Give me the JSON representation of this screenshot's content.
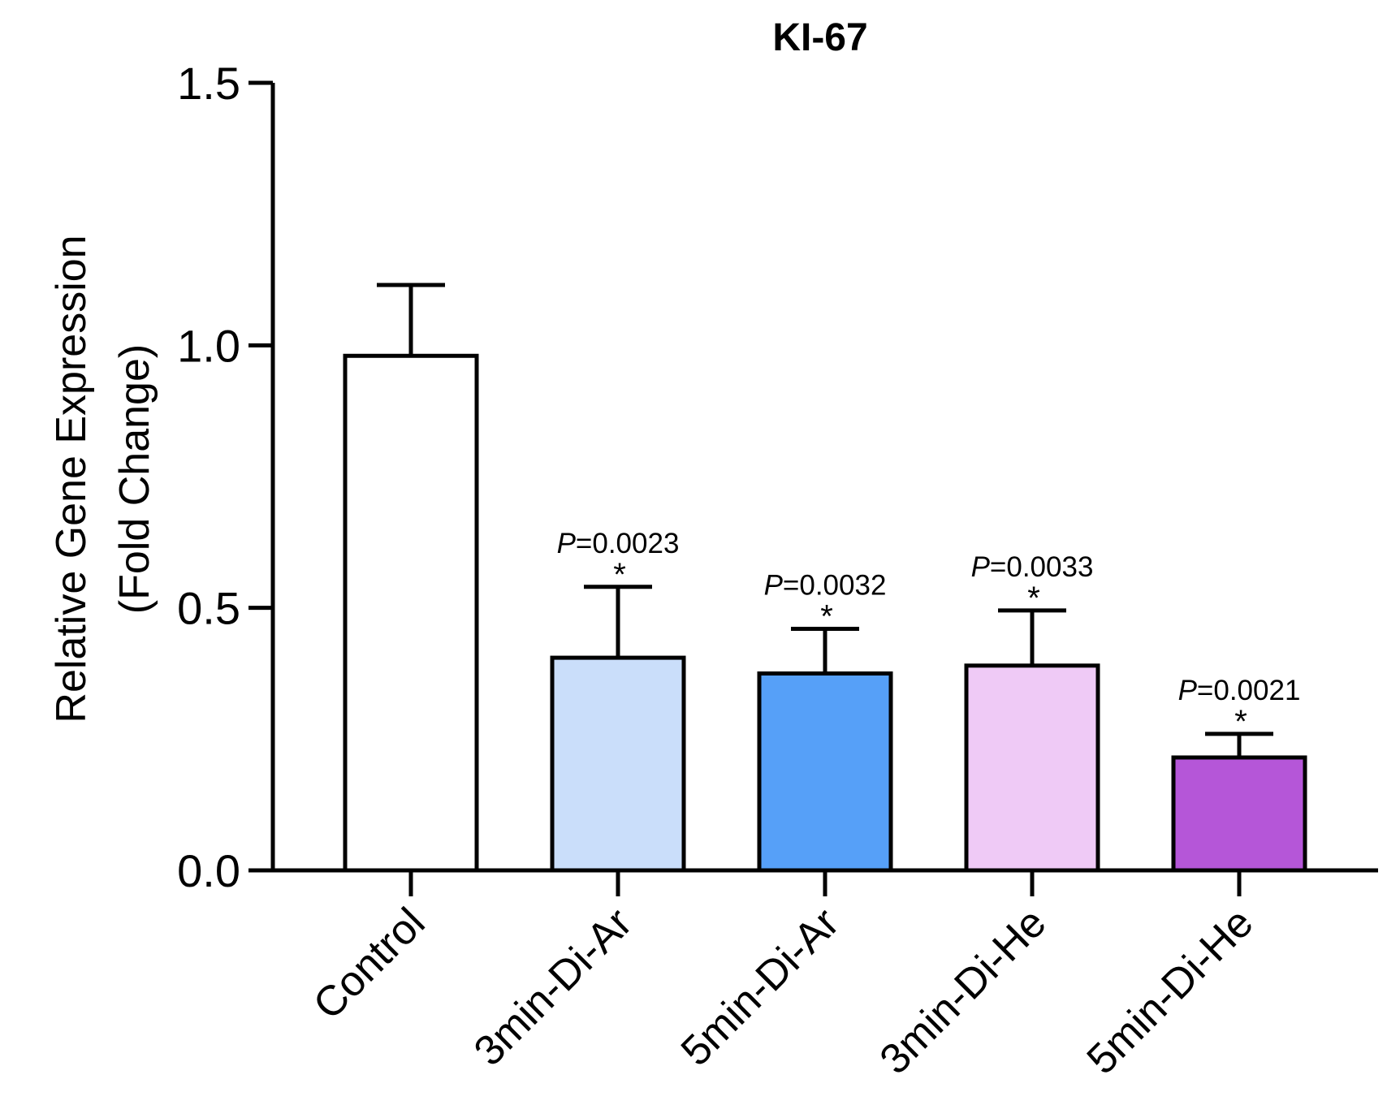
{
  "chart_data": {
    "type": "bar",
    "title": "KI-67",
    "ylabel_lines": [
      "Relative Gene Expression",
      "(Fold Change)"
    ],
    "xlabel": "",
    "ylim": [
      0,
      1.5
    ],
    "yticks": [
      "0.0",
      "0.5",
      "1.0",
      "1.5"
    ],
    "ytick_values": [
      0,
      0.5,
      1.0,
      1.5
    ],
    "categories": [
      "Control",
      "3min-Di-Ar",
      "5min-Di-Ar",
      "3min-Di-He",
      "5min-Di-He"
    ],
    "values": [
      0.98,
      0.405,
      0.375,
      0.39,
      0.215
    ],
    "errors": [
      0.135,
      0.135,
      0.085,
      0.105,
      0.045
    ],
    "colors": [
      "#ffffff",
      "#cadefa",
      "#56a0f8",
      "#efcaf6",
      "#b556d8"
    ],
    "annotations": [
      null,
      {
        "p_prefix": "P",
        "p_value": "=0.0023",
        "star": "*"
      },
      {
        "p_prefix": "P",
        "p_value": "=0.0032",
        "star": "*"
      },
      {
        "p_prefix": "P",
        "p_value": "=0.0033",
        "star": "*"
      },
      {
        "p_prefix": "P",
        "p_value": "=0.0021",
        "star": "*"
      }
    ]
  }
}
